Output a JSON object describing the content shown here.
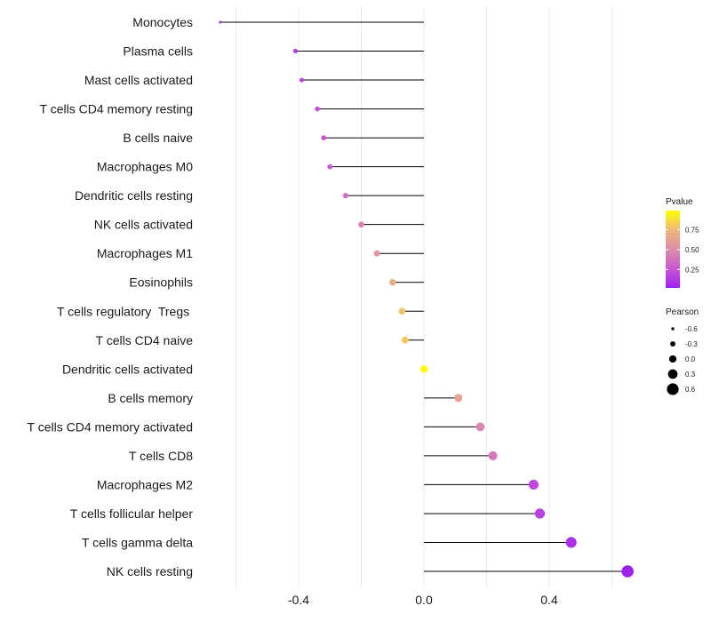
{
  "chart_data": {
    "type": "lollipop",
    "title": "",
    "xlabel": "",
    "ylabel": "",
    "xlim": [
      -0.65,
      0.65
    ],
    "x_ticks": [
      -0.4,
      0.0,
      0.4
    ],
    "x_tick_labels": [
      "-0.4",
      "0.0",
      "0.4"
    ],
    "minor_grid": [
      -0.6,
      -0.2,
      0.2,
      0.6
    ],
    "points": [
      {
        "label": "Monocytes",
        "pearson": -0.65,
        "pvalue": 0.02
      },
      {
        "label": "Plasma cells",
        "pearson": -0.41,
        "pvalue": 0.12
      },
      {
        "label": "Mast cells activated",
        "pearson": -0.39,
        "pvalue": 0.17
      },
      {
        "label": "T cells CD4 memory resting",
        "pearson": -0.34,
        "pvalue": 0.22
      },
      {
        "label": "B cells naive",
        "pearson": -0.32,
        "pvalue": 0.25
      },
      {
        "label": "Macrophages M0",
        "pearson": -0.3,
        "pvalue": 0.28
      },
      {
        "label": "Dendritic cells resting",
        "pearson": -0.25,
        "pvalue": 0.36
      },
      {
        "label": "NK cells activated",
        "pearson": -0.2,
        "pvalue": 0.45
      },
      {
        "label": "Macrophages M1",
        "pearson": -0.15,
        "pvalue": 0.56
      },
      {
        "label": "Eosinophils",
        "pearson": -0.1,
        "pvalue": 0.68
      },
      {
        "label": "T cells regulatory  Tregs ",
        "pearson": -0.07,
        "pvalue": 0.78
      },
      {
        "label": "T cells CD4 naive",
        "pearson": -0.06,
        "pvalue": 0.81
      },
      {
        "label": "Dendritic cells activated",
        "pearson": 0.0,
        "pvalue": 0.99
      },
      {
        "label": "B cells memory",
        "pearson": 0.11,
        "pvalue": 0.62
      },
      {
        "label": "T cells CD4 memory activated",
        "pearson": 0.18,
        "pvalue": 0.47
      },
      {
        "label": "T cells CD8",
        "pearson": 0.22,
        "pvalue": 0.4
      },
      {
        "label": "Macrophages M2",
        "pearson": 0.35,
        "pvalue": 0.2
      },
      {
        "label": "T cells follicular helper",
        "pearson": 0.37,
        "pvalue": 0.17
      },
      {
        "label": "T cells gamma delta",
        "pearson": 0.47,
        "pvalue": 0.09
      },
      {
        "label": "NK cells resting",
        "pearson": 0.65,
        "pvalue": 0.02
      }
    ],
    "legend": {
      "color": {
        "title": "Pvalue",
        "range": [
          0.02,
          0.99
        ],
        "ticks": [
          0.25,
          0.5,
          0.75
        ],
        "tick_labels": [
          "0.25",
          "0.50",
          "0.75"
        ],
        "colors": [
          "#a020f0",
          "#c958d4",
          "#dd8ea8",
          "#efb87a",
          "#ffff00"
        ]
      },
      "size": {
        "title": "Pearson",
        "values": [
          -0.6,
          -0.3,
          0.0,
          0.3,
          0.6
        ],
        "labels": [
          "-0.6",
          "-0.3",
          "0.0",
          "0.3",
          "0.6"
        ]
      }
    }
  }
}
